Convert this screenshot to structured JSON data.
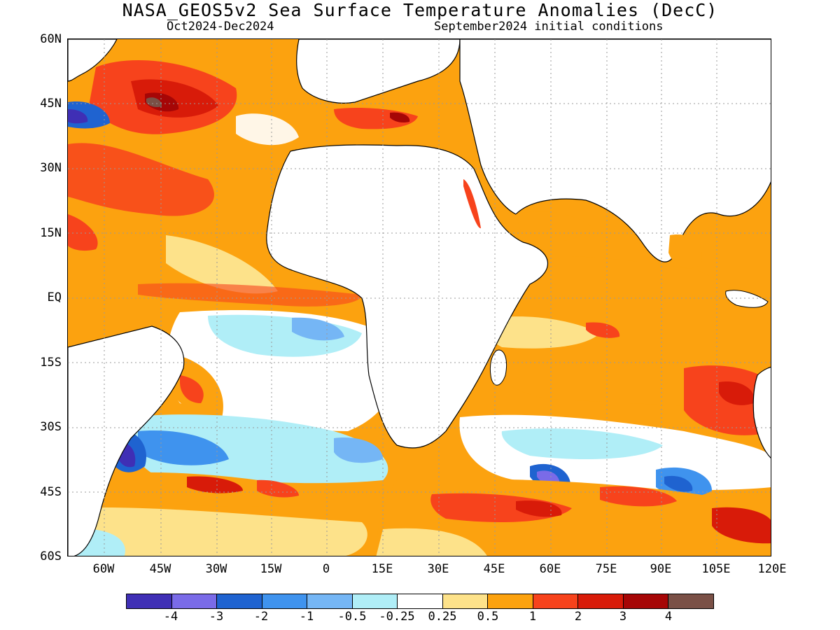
{
  "title": "NASA_GEOS5v2 Sea Surface Temperature Anomalies (DecC)",
  "subtitle_left": "Oct2024-Dec2024",
  "subtitle_right": "September2024 initial conditions",
  "lat_labels": [
    "60N",
    "45N",
    "30N",
    "15N",
    "EQ",
    "15S",
    "30S",
    "45S",
    "60S"
  ],
  "lon_labels": [
    "60W",
    "45W",
    "30W",
    "15W",
    "0",
    "15E",
    "30E",
    "45E",
    "60E",
    "75E",
    "90E",
    "105E",
    "120E"
  ],
  "colorbar": {
    "labels": [
      "-4",
      "-3",
      "-2",
      "-1",
      "-0.5",
      "-0.25",
      "0.25",
      "0.5",
      "1",
      "2",
      "3",
      "4"
    ],
    "colors": [
      "#3f2fb5",
      "#7a6be8",
      "#1f63d0",
      "#3f93ee",
      "#75b6f5",
      "#b0eef7",
      "#ffffff",
      "#fde28a",
      "#fca20f",
      "#f7431c",
      "#d81b09",
      "#a60606",
      "#7a5046"
    ]
  },
  "legend_colors": {
    "land": "#ffffff",
    "coast": "#000000",
    "grid": "#9a9a9a"
  }
}
